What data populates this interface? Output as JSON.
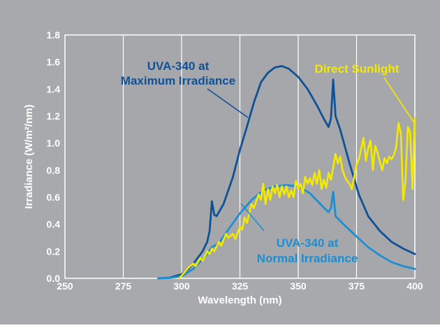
{
  "colors": {
    "panel": "#a8a9ac",
    "plot": "#a6a7ab",
    "grid": "#ffffff",
    "axis_text": "#ffffff",
    "uva_max": "#0f5196",
    "uva_normal": "#1d8fd0",
    "sunlight": "#f4ea00"
  },
  "chart_data": {
    "type": "line",
    "xlabel": "Wavelength (nm)",
    "ylabel": "Irradiance (W/m²/nm)",
    "xlim": [
      250,
      400
    ],
    "ylim": [
      0,
      1.8
    ],
    "xticks": [
      "250",
      "275",
      "300",
      "325",
      "350",
      "375",
      "400"
    ],
    "yticks": [
      "0.0",
      "0.2",
      "0.4",
      "0.6",
      "0.8",
      "1.0",
      "1.2",
      "1.4",
      "1.6",
      "1.8"
    ],
    "grid": "vertical",
    "series": [
      {
        "name": "UVA-340 at Maximum Irradiance",
        "label_lines": [
          "UVA-340 at",
          "Maximum Irradiance"
        ],
        "color": "#0f5196",
        "points": [
          [
            290,
            0
          ],
          [
            295,
            0.005
          ],
          [
            300,
            0.03
          ],
          [
            303,
            0.07
          ],
          [
            306,
            0.13
          ],
          [
            309,
            0.2
          ],
          [
            311,
            0.27
          ],
          [
            312,
            0.35
          ],
          [
            313,
            0.57
          ],
          [
            314,
            0.47
          ],
          [
            315,
            0.46
          ],
          [
            318,
            0.55
          ],
          [
            322,
            0.75
          ],
          [
            325,
            0.95
          ],
          [
            328,
            1.12
          ],
          [
            331,
            1.3
          ],
          [
            334,
            1.45
          ],
          [
            337,
            1.52
          ],
          [
            340,
            1.56
          ],
          [
            343,
            1.57
          ],
          [
            346,
            1.55
          ],
          [
            350,
            1.49
          ],
          [
            354,
            1.4
          ],
          [
            358,
            1.28
          ],
          [
            361,
            1.18
          ],
          [
            363,
            1.12
          ],
          [
            364,
            1.18
          ],
          [
            365,
            1.47
          ],
          [
            366,
            1.2
          ],
          [
            368,
            1.1
          ],
          [
            372,
            0.85
          ],
          [
            376,
            0.62
          ],
          [
            380,
            0.46
          ],
          [
            385,
            0.35
          ],
          [
            390,
            0.27
          ],
          [
            395,
            0.22
          ],
          [
            400,
            0.18
          ]
        ]
      },
      {
        "name": "UVA-340 at Normal Irradiance",
        "label_lines": [
          "UVA-340 at",
          "Normal Irradiance"
        ],
        "color": "#1d8fd0",
        "points": [
          [
            290,
            0
          ],
          [
            295,
            0.003
          ],
          [
            300,
            0.015
          ],
          [
            305,
            0.07
          ],
          [
            310,
            0.16
          ],
          [
            313,
            0.23
          ],
          [
            316,
            0.26
          ],
          [
            320,
            0.36
          ],
          [
            325,
            0.48
          ],
          [
            330,
            0.58
          ],
          [
            335,
            0.65
          ],
          [
            340,
            0.68
          ],
          [
            345,
            0.69
          ],
          [
            350,
            0.68
          ],
          [
            355,
            0.63
          ],
          [
            360,
            0.54
          ],
          [
            363,
            0.49
          ],
          [
            364,
            0.52
          ],
          [
            365,
            0.64
          ],
          [
            366,
            0.46
          ],
          [
            370,
            0.39
          ],
          [
            375,
            0.31
          ],
          [
            380,
            0.23
          ],
          [
            385,
            0.17
          ],
          [
            390,
            0.12
          ],
          [
            395,
            0.09
          ],
          [
            400,
            0.07
          ]
        ]
      },
      {
        "name": "Direct Sunlight",
        "label_lines": [
          "Direct Sunlight"
        ],
        "color": "#f4ea00",
        "points": [
          [
            299,
            0
          ],
          [
            301,
            0.04
          ],
          [
            303,
            0.08
          ],
          [
            305,
            0.11
          ],
          [
            306,
            0.09
          ],
          [
            308,
            0.15
          ],
          [
            309,
            0.13
          ],
          [
            311,
            0.2
          ],
          [
            312,
            0.18
          ],
          [
            313,
            0.22
          ],
          [
            314,
            0.2
          ],
          [
            316,
            0.27
          ],
          [
            317,
            0.24
          ],
          [
            319,
            0.33
          ],
          [
            320,
            0.3
          ],
          [
            322,
            0.33
          ],
          [
            323,
            0.29
          ],
          [
            325,
            0.38
          ],
          [
            326,
            0.36
          ],
          [
            327,
            0.45
          ],
          [
            328,
            0.41
          ],
          [
            330,
            0.55
          ],
          [
            331,
            0.52
          ],
          [
            333,
            0.62
          ],
          [
            334,
            0.58
          ],
          [
            335,
            0.7
          ],
          [
            336,
            0.55
          ],
          [
            337,
            0.66
          ],
          [
            338,
            0.58
          ],
          [
            339,
            0.68
          ],
          [
            340,
            0.63
          ],
          [
            341,
            0.69
          ],
          [
            342,
            0.6
          ],
          [
            343,
            0.68
          ],
          [
            344,
            0.62
          ],
          [
            345,
            0.68
          ],
          [
            346,
            0.6
          ],
          [
            347,
            0.65
          ],
          [
            348,
            0.6
          ],
          [
            349,
            0.72
          ],
          [
            350,
            0.66
          ],
          [
            351,
            0.7
          ],
          [
            352,
            0.63
          ],
          [
            353,
            0.75
          ],
          [
            354,
            0.7
          ],
          [
            355,
            0.74
          ],
          [
            356,
            0.69
          ],
          [
            357,
            0.78
          ],
          [
            358,
            0.7
          ],
          [
            359,
            0.8
          ],
          [
            360,
            0.66
          ],
          [
            361,
            0.73
          ],
          [
            362,
            0.67
          ],
          [
            363,
            0.78
          ],
          [
            364,
            0.73
          ],
          [
            365,
            0.82
          ],
          [
            366,
            0.92
          ],
          [
            367,
            0.85
          ],
          [
            368,
            0.9
          ],
          [
            369,
            0.8
          ],
          [
            370,
            0.75
          ],
          [
            371,
            0.72
          ],
          [
            372,
            0.7
          ],
          [
            373,
            0.66
          ],
          [
            374,
            0.75
          ],
          [
            375,
            0.84
          ],
          [
            376,
            0.88
          ],
          [
            377,
            0.96
          ],
          [
            378,
            1.04
          ],
          [
            379,
            0.87
          ],
          [
            380,
            0.96
          ],
          [
            381,
            1.02
          ],
          [
            382,
            0.8
          ],
          [
            383,
            0.98
          ],
          [
            384,
            0.93
          ],
          [
            385,
            0.86
          ],
          [
            386,
            0.8
          ],
          [
            387,
            0.89
          ],
          [
            388,
            0.85
          ],
          [
            389,
            0.9
          ],
          [
            390,
            0.88
          ],
          [
            391,
            0.91
          ],
          [
            392,
            0.97
          ],
          [
            393,
            1.15
          ],
          [
            394,
            1.07
          ],
          [
            395,
            0.58
          ],
          [
            396,
            0.72
          ],
          [
            397,
            1.12
          ],
          [
            398,
            1.08
          ],
          [
            399,
            0.66
          ],
          [
            400,
            1.19
          ]
        ]
      }
    ]
  }
}
